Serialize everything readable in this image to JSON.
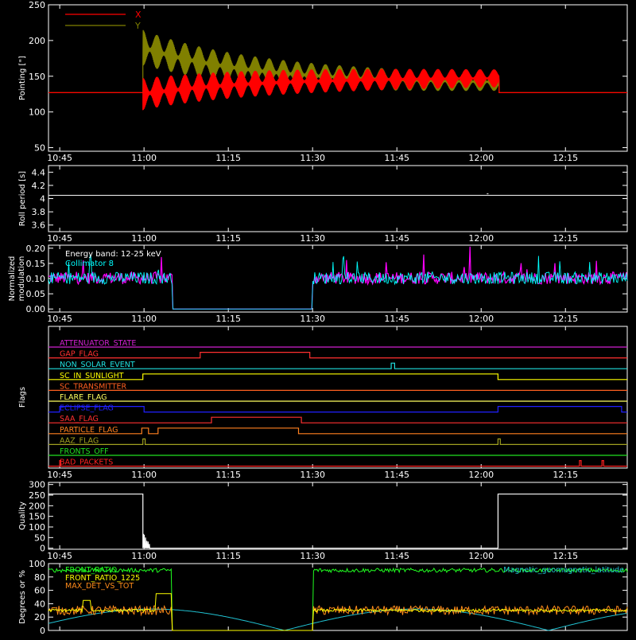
{
  "chart_data": [
    {
      "type": "line",
      "ylabel": "Pointing [\"]",
      "ylim": [
        45,
        250
      ],
      "yticks": [
        50,
        100,
        150,
        200,
        250
      ],
      "legend_position": "top-left",
      "series": [
        {
          "name": "X",
          "color": "#ff0000",
          "before": 127,
          "start": 125,
          "center_end": 148,
          "amp_start": 45,
          "amp_end": 25,
          "end_center": 150
        },
        {
          "name": "Y",
          "color": "#808000",
          "before": 127,
          "start": 190,
          "center_end": 140,
          "amp_start": 50,
          "amp_end": 25,
          "end_center": 138
        }
      ]
    },
    {
      "type": "line",
      "ylabel": "Roll period [s]",
      "ylim": [
        3.5,
        4.5
      ],
      "yticks": [
        3.6,
        3.8,
        4.0,
        4.2,
        4.4
      ],
      "series": [
        {
          "name": "",
          "color": "#ffffff",
          "value": 4.05
        }
      ]
    },
    {
      "type": "line",
      "ylabel_lines": [
        "Normalized",
        "modulation"
      ],
      "ylim": [
        -0.01,
        0.21
      ],
      "yticks": [
        "0.00",
        "0.05",
        "0.10",
        "0.15",
        "0.20"
      ],
      "annotations": [
        "Energy band: 12-25 keV",
        "Collimator 8"
      ],
      "series": [
        {
          "name": "",
          "color": "#ff00ff",
          "baseline": 0.1
        },
        {
          "name": "Collimator 8",
          "color": "#00ffff",
          "baseline": 0.1
        }
      ],
      "gap": [
        "11:05",
        "11:30"
      ]
    },
    {
      "type": "table",
      "ylabel": "Flags",
      "flags": [
        {
          "label": "ATTENUATOR_STATE",
          "color": "#d020d0",
          "segments": []
        },
        {
          "label": "GAP_FLAG",
          "color": "#ff3030",
          "segments": [
            [
              "11:10",
              "11:29.5"
            ]
          ]
        },
        {
          "label": "NON_SOLAR_EVENT",
          "color": "#20e0e0",
          "segments": [
            [
              "11:44",
              "11:44.6"
            ]
          ]
        },
        {
          "label": "SC_IN_SUNLIGHT",
          "color": "#ffff00",
          "segments": [
            [
              "10:59.8",
              "12:03"
            ]
          ]
        },
        {
          "label": "SC_TRANSMITTER",
          "color": "#ff6020",
          "segments": []
        },
        {
          "label": "FLARE_FLAG",
          "color": "#ffff60",
          "segments": []
        },
        {
          "label": "ECLIPSE_FLAG",
          "color": "#2020ff",
          "segments": [
            [
              "10:45",
              "11:00"
            ],
            [
              "12:03",
              "12:25"
            ]
          ]
        },
        {
          "label": "SAA_FLAG",
          "color": "#ff3030",
          "segments": [
            [
              "11:12",
              "11:28"
            ]
          ]
        },
        {
          "label": "PARTICLE_FLAG",
          "color": "#ff8020",
          "segments": [
            [
              "10:59.6",
              "11:00.8"
            ],
            [
              "11:02.5",
              "11:27.5"
            ]
          ]
        },
        {
          "label": "AAZ_FLAG",
          "color": "#a0a020",
          "segments": [
            [
              "10:59.8",
              "11:00.2"
            ],
            [
              "12:03",
              "12:03.4"
            ]
          ]
        },
        {
          "label": "FRONTS_OFF",
          "color": "#20e020",
          "segments": []
        },
        {
          "label": "BAD_PACKETS",
          "color": "#ff2020",
          "segments": [
            [
              "10:45",
              "10:45.2"
            ],
            [
              "12:17.5",
              "12:17.8"
            ],
            [
              "12:21.5",
              "12:21.8"
            ]
          ]
        }
      ]
    },
    {
      "type": "line",
      "ylabel": "Quality",
      "ylim": [
        -5,
        310
      ],
      "yticks": [
        0,
        50,
        100,
        150,
        200,
        250,
        300
      ],
      "series": [
        {
          "name": "",
          "color": "#ffffff",
          "high": 255,
          "low": 0
        }
      ]
    },
    {
      "type": "line",
      "ylabel": "Degrees or %",
      "ylim": [
        0,
        100
      ],
      "yticks": [
        0,
        20,
        40,
        60,
        80,
        100
      ],
      "legend_position": "top-left",
      "series": [
        {
          "name": "FRONT_RATIO",
          "color": "#20ff20",
          "baseline": 90
        },
        {
          "name": "FRONT_RATIO_1225",
          "color": "#ffff00",
          "baseline": 30
        },
        {
          "name": "MAX_DET_VS_TOT",
          "color": "#ff8c1a",
          "baseline": 30
        },
        {
          "name": "Magnetic_geomagnetic_latitude",
          "color": "#20c0d0",
          "peak": 32,
          "min": 0
        }
      ]
    }
  ],
  "xaxis": {
    "range": [
      "10:43",
      "12:26"
    ],
    "ticks": [
      "10:45",
      "11:00",
      "11:15",
      "11:30",
      "11:45",
      "12:00",
      "12:15"
    ]
  }
}
